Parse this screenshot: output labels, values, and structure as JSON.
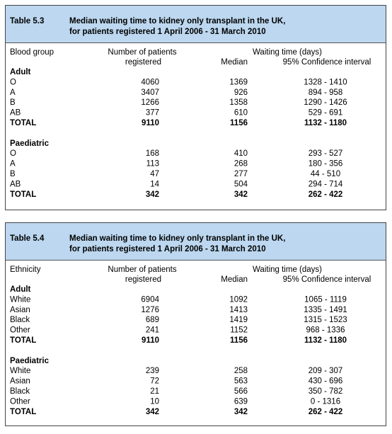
{
  "tables": [
    {
      "number": "Table 5.3",
      "title": [
        "Median waiting time to kidney only transplant in the UK,",
        "for patients registered 1 April 2006 - 31 March 2010"
      ],
      "header": {
        "group": "Blood group",
        "patients": [
          "Number of patients",
          "registered"
        ],
        "waiting": "Waiting time (days)",
        "median": "Median",
        "ci": "95% Confidence interval"
      },
      "sections": [
        {
          "name": "Adult",
          "rows": [
            [
              "O",
              "4060",
              "1369",
              "1328 - 1410"
            ],
            [
              "A",
              "3407",
              "926",
              "894 - 958"
            ],
            [
              "B",
              "1266",
              "1358",
              "1290 - 1426"
            ],
            [
              "AB",
              "377",
              "610",
              "529 - 691"
            ],
            [
              "TOTAL",
              "9110",
              "1156",
              "1132 - 1180"
            ]
          ]
        },
        {
          "name": "Paediatric",
          "rows": [
            [
              "O",
              "168",
              "410",
              "293 - 527"
            ],
            [
              "A",
              "113",
              "268",
              "180 - 356"
            ],
            [
              "B",
              "47",
              "277",
              "44 - 510"
            ],
            [
              "AB",
              "14",
              "504",
              "294 - 714"
            ],
            [
              "TOTAL",
              "342",
              "342",
              "262 - 422"
            ]
          ]
        }
      ]
    },
    {
      "number": "Table 5.4",
      "title": [
        "Median waiting time to kidney only transplant in the UK,",
        "for patients registered 1 April 2006 - 31 March 2010"
      ],
      "header": {
        "group": "Ethnicity",
        "patients": [
          "Number of patients",
          "registered"
        ],
        "waiting": "Waiting time (days)",
        "median": "Median",
        "ci": "95% Confidence interval"
      },
      "sections": [
        {
          "name": "Adult",
          "rows": [
            [
              "White",
              "6904",
              "1092",
              "1065 - 1119"
            ],
            [
              "Asian",
              "1276",
              "1413",
              "1335 - 1491"
            ],
            [
              "Black",
              "689",
              "1419",
              "1315 - 1523"
            ],
            [
              "Other",
              "241",
              "1152",
              "968 - 1336"
            ],
            [
              "TOTAL",
              "9110",
              "1156",
              "1132 - 1180"
            ]
          ]
        },
        {
          "name": "Paediatric",
          "rows": [
            [
              "White",
              "239",
              "258",
              "209 - 307"
            ],
            [
              "Asian",
              "72",
              "563",
              "430 - 696"
            ],
            [
              "Black",
              "21",
              "566",
              "350 - 782"
            ],
            [
              "Other",
              "10",
              "639",
              "0 - 1316"
            ],
            [
              "TOTAL",
              "342",
              "342",
              "262 - 422"
            ]
          ]
        }
      ]
    }
  ]
}
